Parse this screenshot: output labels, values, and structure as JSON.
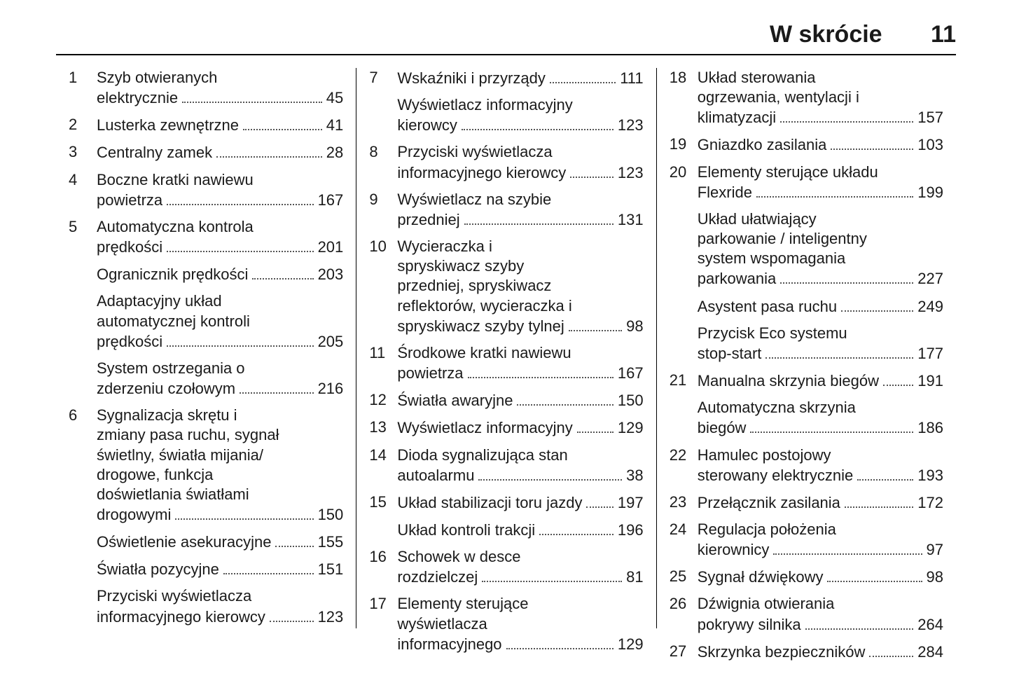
{
  "header": {
    "title": "W skrócie",
    "page": "11"
  },
  "columns": [
    [
      {
        "n": "1",
        "pre": "Szyb otwieranych",
        "last": "elektrycznie",
        "pg": "45"
      },
      {
        "n": "2",
        "pre": "",
        "last": "Lusterka zewnętrzne",
        "pg": "41"
      },
      {
        "n": "3",
        "pre": "",
        "last": "Centralny zamek",
        "pg": "28"
      },
      {
        "n": "4",
        "pre": "Boczne kratki nawiewu",
        "last": "powietrza",
        "pg": "167"
      },
      {
        "n": "5",
        "pre": "Automatyczna kontrola",
        "last": "prędkości",
        "pg": "201"
      },
      {
        "n": "",
        "pre": "",
        "last": "Ogranicznik prędkości",
        "pg": "203"
      },
      {
        "n": "",
        "pre": "Adaptacyjny układ\nautomatycznej kontroli",
        "last": "prędkości",
        "pg": "205"
      },
      {
        "n": "",
        "pre": "System ostrzegania o",
        "last": "zderzeniu czołowym",
        "pg": "216"
      },
      {
        "n": "6",
        "pre": "Sygnalizacja skrętu i\nzmiany pasa ruchu, sygnał\nświetlny, światła mijania/\ndrogowe, funkcja\ndoświetlania światłami",
        "last": "drogowymi",
        "pg": "150"
      },
      {
        "n": "",
        "pre": "",
        "last": "Oświetlenie asekuracyjne",
        "pg": "155"
      },
      {
        "n": "",
        "pre": "",
        "last": "Światła pozycyjne",
        "pg": "151"
      },
      {
        "n": "",
        "pre": "Przyciski wyświetlacza",
        "last": "informacyjnego kierowcy",
        "pg": "123"
      }
    ],
    [
      {
        "n": "7",
        "pre": "",
        "last": "Wskaźniki i przyrządy",
        "pg": "111"
      },
      {
        "n": "",
        "pre": "Wyświetlacz informacyjny",
        "last": "kierowcy",
        "pg": "123"
      },
      {
        "n": "8",
        "pre": "Przyciski wyświetlacza",
        "last": "informacyjnego kierowcy",
        "pg": "123"
      },
      {
        "n": "9",
        "pre": "Wyświetlacz na szybie",
        "last": "przedniej",
        "pg": "131"
      },
      {
        "n": "10",
        "pre": "Wycieraczka i\nspryskiwacz szyby\nprzedniej, spryskiwacz\nreflektorów, wycieraczka i",
        "last": "spryskiwacz szyby tylnej",
        "pg": "98"
      },
      {
        "n": "11",
        "pre": "Środkowe kratki nawiewu",
        "last": "powietrza",
        "pg": "167"
      },
      {
        "n": "12",
        "pre": "",
        "last": "Światła awaryjne",
        "pg": "150"
      },
      {
        "n": "13",
        "pre": "",
        "last": "Wyświetlacz informacyjny",
        "pg": "129"
      },
      {
        "n": "14",
        "pre": "Dioda sygnalizująca stan",
        "last": "autoalarmu",
        "pg": "38"
      },
      {
        "n": "15",
        "pre": "",
        "last": "Układ stabilizacji toru jazdy",
        "pg": "197"
      },
      {
        "n": "",
        "pre": "",
        "last": "Układ kontroli trakcji",
        "pg": "196"
      },
      {
        "n": "16",
        "pre": "Schowek w desce",
        "last": "rozdzielczej",
        "pg": "81"
      },
      {
        "n": "17",
        "pre": "Elementy sterujące\nwyświetlacza",
        "last": "informacyjnego",
        "pg": "129"
      }
    ],
    [
      {
        "n": "18",
        "pre": "Układ sterowania\nogrzewania, wentylacji i",
        "last": "klimatyzacji",
        "pg": "157"
      },
      {
        "n": "19",
        "pre": "",
        "last": "Gniazdko zasilania",
        "pg": "103"
      },
      {
        "n": "20",
        "pre": "Elementy sterujące układu",
        "last": "Flexride",
        "pg": "199"
      },
      {
        "n": "",
        "pre": "Układ ułatwiający\nparkowanie / inteligentny\nsystem wspomagania",
        "last": "parkowania",
        "pg": "227"
      },
      {
        "n": "",
        "pre": "",
        "last": "Asystent pasa ruchu",
        "pg": "249"
      },
      {
        "n": "",
        "pre": "Przycisk Eco systemu",
        "last": "stop-start",
        "pg": "177"
      },
      {
        "n": "21",
        "pre": "",
        "last": "Manualna skrzynia biegów",
        "pg": "191"
      },
      {
        "n": "",
        "pre": "Automatyczna skrzynia",
        "last": "biegów",
        "pg": "186"
      },
      {
        "n": "22",
        "pre": "Hamulec postojowy",
        "last": "sterowany elektrycznie",
        "pg": "193"
      },
      {
        "n": "23",
        "pre": "",
        "last": "Przełącznik zasilania",
        "pg": "172"
      },
      {
        "n": "24",
        "pre": "Regulacja położenia",
        "last": "kierownicy",
        "pg": "97"
      },
      {
        "n": "25",
        "pre": "",
        "last": "Sygnał dźwiękowy",
        "pg": "98"
      },
      {
        "n": "26",
        "pre": "Dźwignia otwierania",
        "last": "pokrywy silnika",
        "pg": "264"
      },
      {
        "n": "27",
        "pre": "",
        "last": "Skrzynka bezpieczników",
        "pg": "284"
      }
    ]
  ]
}
